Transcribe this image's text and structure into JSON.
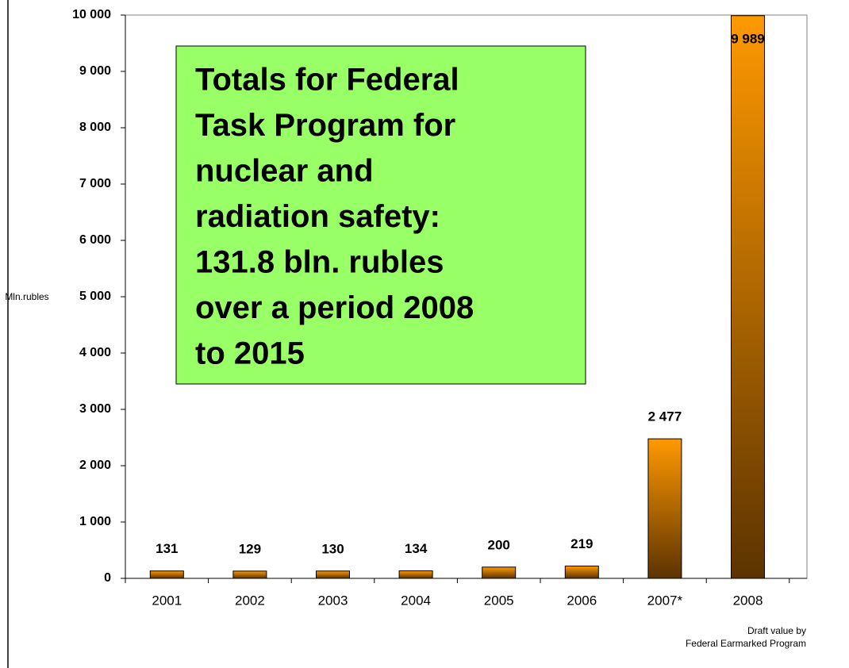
{
  "chart_data": {
    "type": "bar",
    "y_label": "Mln.rubles",
    "categories": [
      "2001",
      "2002",
      "2003",
      "2004",
      "2005",
      "2006",
      "2007*",
      "2008"
    ],
    "values": [
      131,
      129,
      130,
      134,
      200,
      219,
      2477,
      9989
    ],
    "value_labels": [
      "131",
      "129",
      "130",
      "134",
      "200",
      "219",
      "2 477",
      "9 989"
    ],
    "color": [
      "#ff9900",
      "#5c3300"
    ],
    "ylim": [
      0,
      10000
    ],
    "yticks": [
      0,
      {
        "value": 1000,
        "label": "1 000"
      },
      {
        "value": 2000,
        "label": "2 000"
      },
      {
        "value": 3000,
        "label": "3 000"
      },
      {
        "value": 4000,
        "label": "4 000"
      },
      {
        "value": 5000,
        "label": "5 000"
      },
      {
        "value": 6000,
        "label": "6 000"
      },
      {
        "value": 7000,
        "label": "7 000"
      },
      {
        "value": 8000,
        "label": "8 000"
      },
      {
        "value": 9000,
        "label": "9 000"
      },
      {
        "value": 10000,
        "label": "10 000"
      }
    ],
    "annotation": [
      "Totals for Federal",
      "Task Program for",
      "nuclear and",
      "radiation safety:",
      "131.8 bln. rubles",
      "over a period 2008",
      "to 2015"
    ],
    "footnote": [
      "Draft  value by",
      "Federal Earmarked Program"
    ]
  }
}
